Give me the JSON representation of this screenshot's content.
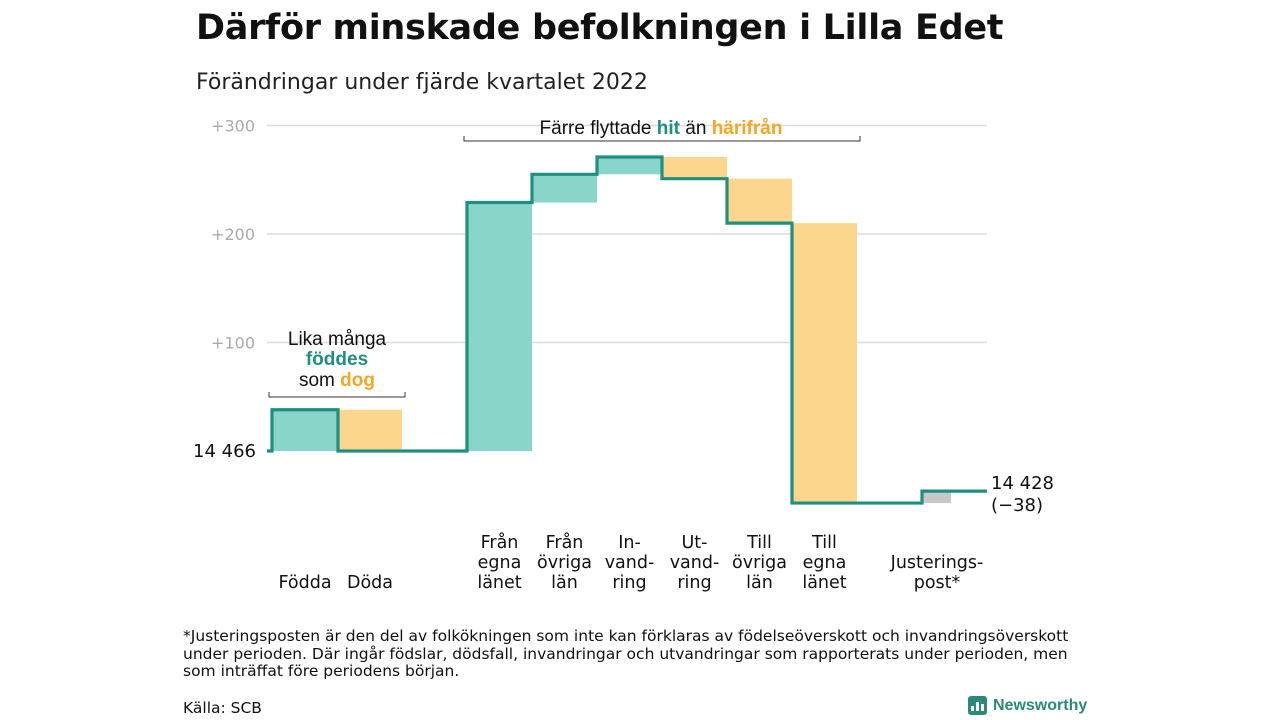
{
  "title": "Därför minskade befolkningen i Lilla Edet",
  "subtitle": "Förändringar under fjärde kvartalet 2022",
  "footnote": "*Justeringsposten är den del av folkökningen som inte kan förklaras av födelseöverskott och invandringsöverskott under perioden. Där ingår födslar, dödsfall, invandringar och utvandringar som rapporterats under perioden, men som inträffat före periodens början.",
  "source": "Källa: SCB",
  "logo_text": "Newsworthy",
  "colors": {
    "line": "#1f9080",
    "increase": "#8ad5ca",
    "decrease": "#fdd68e",
    "adjustment": "#c8c8c8",
    "teal_text": "#1f9080",
    "orange_text": "#f5a623",
    "grid": "#dcdcdc",
    "tick_text": "#aaaaaa"
  },
  "chart_data": {
    "type": "waterfall",
    "start_value": 14466,
    "start_label": "14 466",
    "end_value": 14428,
    "end_label": "14 428",
    "end_change_label": "(−38)",
    "y_axis": {
      "relative_to_start": true,
      "ylim": [
        -60,
        300
      ],
      "ticks": [
        100,
        200,
        300
      ],
      "tick_labels": [
        "+100",
        "+200",
        "+300"
      ]
    },
    "steps": [
      {
        "label_lines": [
          "Födda"
        ],
        "change": 38,
        "kind": "increase"
      },
      {
        "label_lines": [
          "Döda"
        ],
        "change": -38,
        "kind": "decrease"
      },
      {
        "label_lines": [
          "Från",
          "egna",
          "länet"
        ],
        "change": 229,
        "kind": "increase"
      },
      {
        "label_lines": [
          "Från",
          "övriga",
          "län"
        ],
        "change": 26,
        "kind": "increase"
      },
      {
        "label_lines": [
          "In-",
          "vand-",
          "ring"
        ],
        "change": 16,
        "kind": "increase"
      },
      {
        "label_lines": [
          "Ut-",
          "vand-",
          "ring"
        ],
        "change": -20,
        "kind": "decrease"
      },
      {
        "label_lines": [
          "Till",
          "övriga",
          "län"
        ],
        "change": -41,
        "kind": "decrease"
      },
      {
        "label_lines": [
          "Till",
          "egna",
          "länet"
        ],
        "change": -258,
        "kind": "decrease"
      },
      {
        "label_lines": [
          "Justerings-",
          "post*"
        ],
        "change": 11,
        "kind": "adjustment"
      }
    ],
    "annotations": [
      {
        "id": "births",
        "lines": [
          [
            {
              "text": "Lika många",
              "style": "plain"
            }
          ],
          [
            {
              "text": "föddes",
              "style": "teal"
            }
          ],
          [
            {
              "text": "som ",
              "style": "plain"
            },
            {
              "text": "dog",
              "style": "orange"
            }
          ]
        ]
      },
      {
        "id": "migration",
        "lines": [
          [
            {
              "text": "Färre flyttade ",
              "style": "plain"
            },
            {
              "text": "hit",
              "style": "teal"
            },
            {
              "text": " än ",
              "style": "plain"
            },
            {
              "text": "härifrån",
              "style": "orange"
            }
          ]
        ]
      }
    ]
  }
}
